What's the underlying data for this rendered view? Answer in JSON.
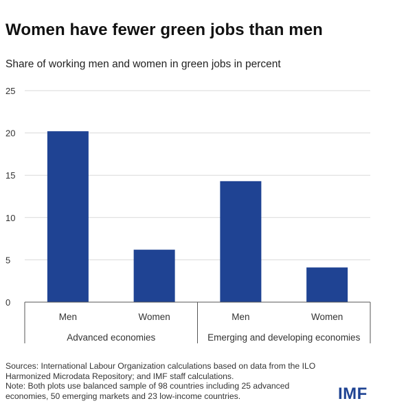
{
  "title": "Women have fewer green jobs than men",
  "subtitle": "Share of working men and women in green jobs in percent",
  "chart_data": {
    "type": "bar",
    "ylim": [
      0,
      25
    ],
    "y_ticks": [
      0,
      5,
      10,
      15,
      20,
      25
    ],
    "grid": true,
    "groups": [
      "Advanced economies",
      "Emerging and developing economies"
    ],
    "categories": [
      "Men",
      "Women",
      "Men",
      "Women"
    ],
    "category_group": [
      0,
      0,
      1,
      1
    ],
    "values": [
      20.2,
      6.2,
      14.3,
      4.1
    ],
    "bar_color": "#1f4393",
    "grid_color": "#d9d9d9"
  },
  "source": [
    "Sources: International Labour Organization calculations based on data from the ILO",
    "Harmonized Microdata Repository; and IMF staff calculations.",
    "Note: Both plots use balanced sample of 98 countries including 25 advanced",
    "economies, 50 emerging markets and 23 low-income countries."
  ],
  "logo_text": "IMF"
}
